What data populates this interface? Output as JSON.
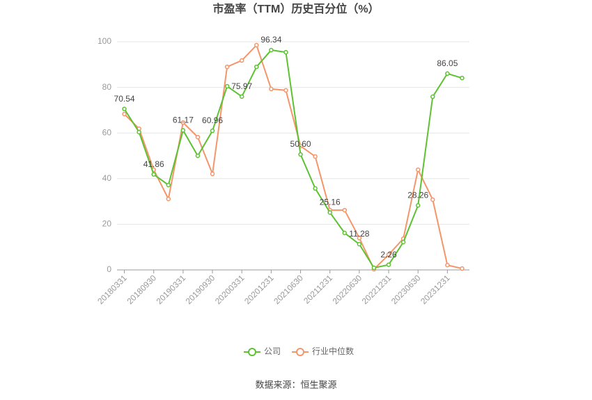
{
  "chart_data": {
    "type": "line",
    "title": "市盈率（TTM）历史百分位（%）",
    "categories": [
      "20180331",
      null,
      "20180930",
      null,
      "20190331",
      null,
      "20190930",
      null,
      "20200331",
      null,
      "20201231",
      null,
      "20210630",
      null,
      "20211231",
      null,
      "20220630",
      null,
      "20221231",
      null,
      "20230630",
      null,
      "20231231",
      null
    ],
    "series": [
      {
        "name": "公司",
        "color": "#5cc232",
        "values": [
          70.54,
          60.4,
          41.86,
          37.2,
          61.17,
          50,
          60.96,
          80.5,
          75.97,
          89,
          96.34,
          95.4,
          50.6,
          35.7,
          25.16,
          16.2,
          11.28,
          0.9,
          2.26,
          12.2,
          28.26,
          75.9,
          86.05,
          84.1
        ],
        "value_labels": [
          "70.54",
          null,
          "41.86",
          null,
          "61.17",
          null,
          "60.96",
          null,
          "75.97",
          null,
          "96.34",
          null,
          "50.60",
          null,
          "25.16",
          null,
          "11.28",
          null,
          "2.26",
          null,
          "28.26",
          null,
          "86.05",
          null
        ]
      },
      {
        "name": "行业中位数",
        "color": "#f4956a",
        "values": [
          68.3,
          61.9,
          43.9,
          31.1,
          64.6,
          58.2,
          42.1,
          89,
          91.8,
          98.5,
          79.3,
          78.7,
          54.3,
          49.7,
          26.2,
          26.2,
          14,
          0.3,
          6.7,
          13.7,
          43.9,
          30.8,
          2.1,
          0.6
        ]
      }
    ],
    "ylim": [
      0,
      100
    ],
    "yticks": [
      0,
      20,
      40,
      60,
      80,
      100
    ],
    "grid": true,
    "source": "数据来源：恒生聚源"
  }
}
